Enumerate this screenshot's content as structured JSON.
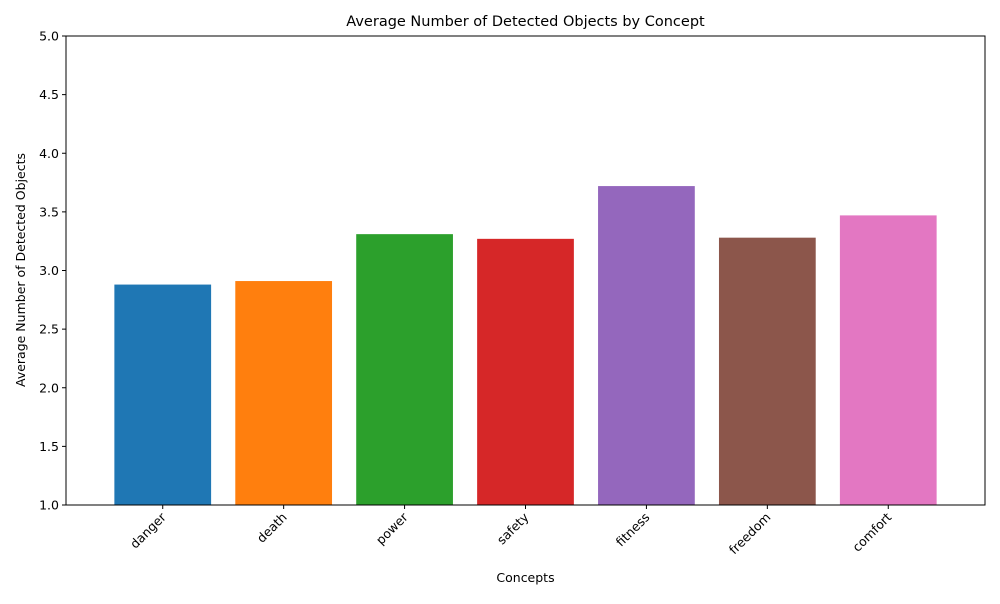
{
  "chart_data": {
    "type": "bar",
    "title": "Average Number of Detected Objects by Concept",
    "xlabel": "Concepts",
    "ylabel": "Average Number of Detected Objects",
    "categories": [
      "danger",
      "death",
      "power",
      "safety",
      "fitness",
      "freedom",
      "comfort"
    ],
    "values": [
      2.88,
      2.91,
      3.31,
      3.27,
      3.72,
      3.28,
      3.47
    ],
    "colors": [
      "#1f77b4",
      "#ff7f0e",
      "#2ca02c",
      "#d62728",
      "#9467bd",
      "#8c564b",
      "#e377c2"
    ],
    "ylim": [
      1.0,
      5.0
    ],
    "yticks": [
      "1.0",
      "1.5",
      "2.0",
      "2.5",
      "3.0",
      "3.5",
      "4.0",
      "4.5",
      "5.0"
    ],
    "grid": false,
    "legend": "none"
  }
}
